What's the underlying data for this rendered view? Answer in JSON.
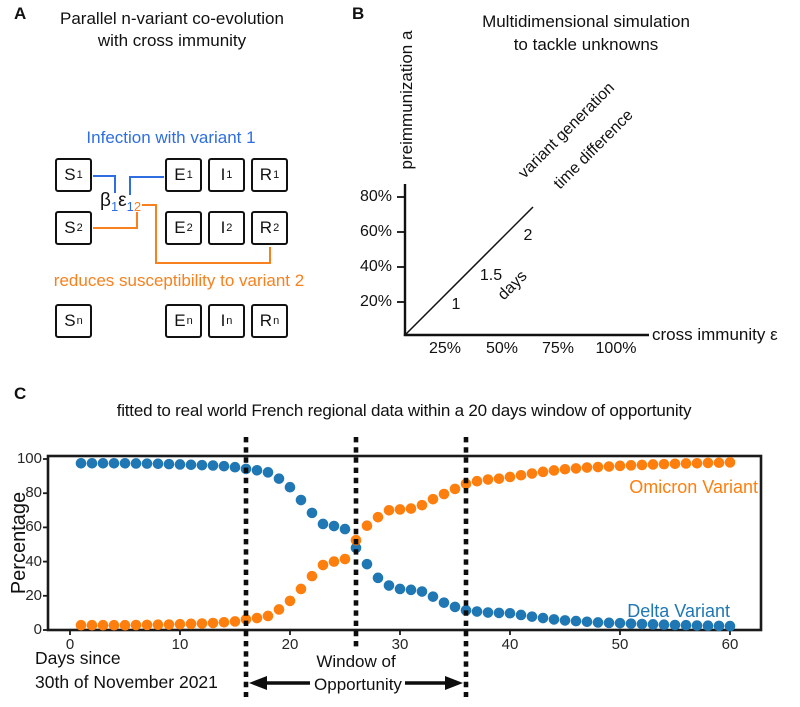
{
  "figure": {
    "colors": {
      "panel_a_blue": "#2e6ee0",
      "panel_a_orange": "#f7811e",
      "chart_blue": "#1f77b4",
      "chart_orange": "#ff7f0e",
      "black": "#111111"
    },
    "panels": {
      "A": {
        "label": "A",
        "title_line1": "Parallel n-variant co-evolution",
        "title_line2": "with cross immunity",
        "infection_caption": "Infection with variant 1",
        "reduces_caption": "reduces susceptibility to variant 2",
        "rate_label_segments": [
          {
            "text": "β",
            "color": "#111111",
            "sub": false
          },
          {
            "text": "1",
            "color": "#2e6ee0",
            "sub": true
          },
          {
            "text": "ε",
            "color": "#111111",
            "sub": false
          },
          {
            "text": "1",
            "color": "#2e6ee0",
            "sub": true
          },
          {
            "text": "2",
            "color": "#f7811e",
            "sub": true
          }
        ],
        "rows": [
          {
            "sub": "1",
            "letters": [
              "S",
              "E",
              "I",
              "R"
            ]
          },
          {
            "sub": "2",
            "letters": [
              "S",
              "E",
              "I",
              "R"
            ]
          },
          {
            "sub": "n",
            "letters": [
              "S",
              "E",
              "I",
              "R"
            ]
          }
        ]
      },
      "B": {
        "label": "B",
        "title_line1": "Multidimensional simulation",
        "title_line2": "to tackle unknowns",
        "y_axis_label": "preimmunization a",
        "x_axis_label": "cross immunity ε",
        "y_ticks": [
          "80%",
          "60%",
          "40%",
          "20%"
        ],
        "x_ticks": [
          "25%",
          "50%",
          "75%",
          "100%"
        ],
        "diag_values": [
          "1",
          "1.5",
          "2"
        ],
        "diag_unit": "days",
        "diag_label_line1": "variant generation",
        "diag_label_line2": "time difference"
      },
      "C": {
        "label": "C",
        "title": "fitted to real world French regional data within a 20 days window of opportunity",
        "ylabel": "Percentage",
        "xlabel_line1": "Days since",
        "xlabel_line2": "30th of November 2021",
        "window_label_line1": "Window of",
        "window_label_line2": "Opportunity"
      }
    }
  },
  "chart_data": {
    "type": "scatter",
    "title": "fitted to real world French regional data within a 20 days window of opportunity",
    "xlabel": "Days since 30th of November 2021",
    "ylabel": "Percentage",
    "xlim": [
      -2,
      63
    ],
    "ylim": [
      0,
      102
    ],
    "grid": false,
    "legend_position": "inside-right",
    "x_ticks": [
      0,
      10,
      20,
      30,
      40,
      50,
      60
    ],
    "y_ticks": [
      0,
      20,
      40,
      60,
      80,
      100
    ],
    "x": [
      1,
      2,
      3,
      4,
      5,
      6,
      7,
      8,
      9,
      10,
      11,
      12,
      13,
      14,
      15,
      16,
      17,
      18,
      19,
      20,
      21,
      22,
      23,
      24,
      25,
      26,
      27,
      28,
      29,
      30,
      31,
      32,
      33,
      34,
      35,
      36,
      37,
      38,
      39,
      40,
      41,
      42,
      43,
      44,
      45,
      46,
      47,
      48,
      49,
      50,
      51,
      52,
      53,
      54,
      55,
      56,
      57,
      58,
      59,
      60
    ],
    "series": [
      {
        "name": "Omicron Variant",
        "color": "#ff7f0e",
        "values": [
          2.8,
          2.8,
          2.8,
          2.8,
          2.8,
          2.9,
          3.0,
          3.1,
          3.2,
          3.4,
          3.6,
          3.8,
          4.1,
          4.5,
          5.0,
          6.2,
          7.0,
          8.2,
          12.0,
          17.0,
          24.0,
          31.5,
          38.0,
          40.0,
          41.5,
          52.5,
          61.0,
          66.0,
          70.0,
          70.5,
          71.0,
          73.0,
          76.5,
          79.5,
          82.5,
          85.5,
          87.0,
          88.0,
          88.5,
          89.5,
          90.5,
          91.5,
          92.5,
          93.3,
          94.0,
          94.5,
          95.0,
          95.3,
          95.6,
          96.0,
          96.3,
          96.5,
          96.8,
          97.0,
          97.2,
          97.4,
          97.5,
          97.7,
          97.8,
          98.0
        ]
      },
      {
        "name": "Delta Variant",
        "color": "#1f77b4",
        "values": [
          97.5,
          97.5,
          97.5,
          97.5,
          97.5,
          97.4,
          97.3,
          97.2,
          97.0,
          96.8,
          96.6,
          96.4,
          96.2,
          95.8,
          95.2,
          94.2,
          93.4,
          92.2,
          88.5,
          83.5,
          76.0,
          68.5,
          62.0,
          60.8,
          59.0,
          48.0,
          38.5,
          30.5,
          26.0,
          24.0,
          23.5,
          22.5,
          19.5,
          16.0,
          13.5,
          11.5,
          10.8,
          10.2,
          10.0,
          9.8,
          8.8,
          7.8,
          7.0,
          6.2,
          5.6,
          5.2,
          4.8,
          4.4,
          4.2,
          4.0,
          3.7,
          3.5,
          3.3,
          3.1,
          2.9,
          2.8,
          2.6,
          2.5,
          2.4,
          2.3
        ]
      }
    ],
    "annotations": {
      "window_lines_days": [
        16,
        26,
        36
      ],
      "window_label": "Window of Opportunity",
      "window_span_days": 20
    }
  }
}
